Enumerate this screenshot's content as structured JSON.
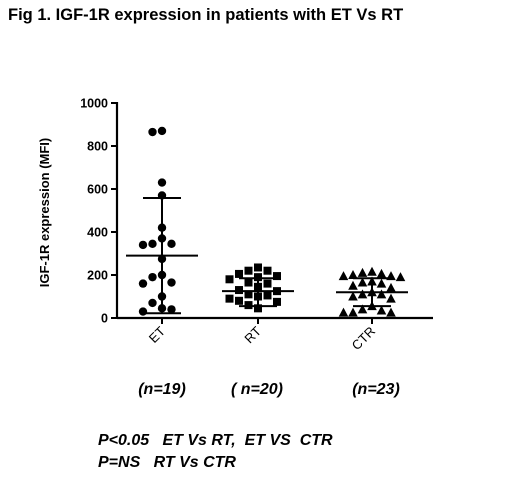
{
  "title": "Fig 1. IGF-1R expression in patients with ET Vs RT",
  "chart_data": {
    "type": "scatter",
    "ylabel": "IGF-1R expression (MFI)",
    "ylim": [
      0,
      1000
    ],
    "yticks": [
      0,
      200,
      400,
      600,
      800,
      1000
    ],
    "categories": [
      "ET",
      "RT",
      "CTR"
    ],
    "group_n": [
      "(n=19)",
      "( n=20)",
      "(n=23)"
    ],
    "series": [
      {
        "category": "ET",
        "marker": "circle",
        "mean": 290,
        "sd_upper": 558,
        "sd_lower": 22,
        "values": [
          870,
          865,
          630,
          570,
          420,
          370,
          345,
          345,
          340,
          275,
          200,
          190,
          165,
          160,
          100,
          70,
          45,
          40,
          30
        ]
      },
      {
        "category": "RT",
        "marker": "square",
        "mean": 125,
        "sd_upper": 185,
        "sd_lower": 55,
        "values": [
          235,
          220,
          220,
          205,
          195,
          190,
          180,
          165,
          160,
          145,
          130,
          125,
          110,
          105,
          100,
          90,
          80,
          75,
          60,
          45
        ]
      },
      {
        "category": "CTR",
        "marker": "triangle",
        "mean": 120,
        "sd_upper": 185,
        "sd_lower": 55,
        "values": [
          215,
          210,
          205,
          200,
          195,
          195,
          190,
          170,
          165,
          160,
          150,
          140,
          120,
          110,
          110,
          100,
          90,
          55,
          40,
          35,
          25,
          25,
          25
        ]
      }
    ]
  },
  "stats": {
    "line1": "P<0.05   ET Vs RT,  ET VS  CTR",
    "line2": "P=NS   RT Vs CTR"
  }
}
